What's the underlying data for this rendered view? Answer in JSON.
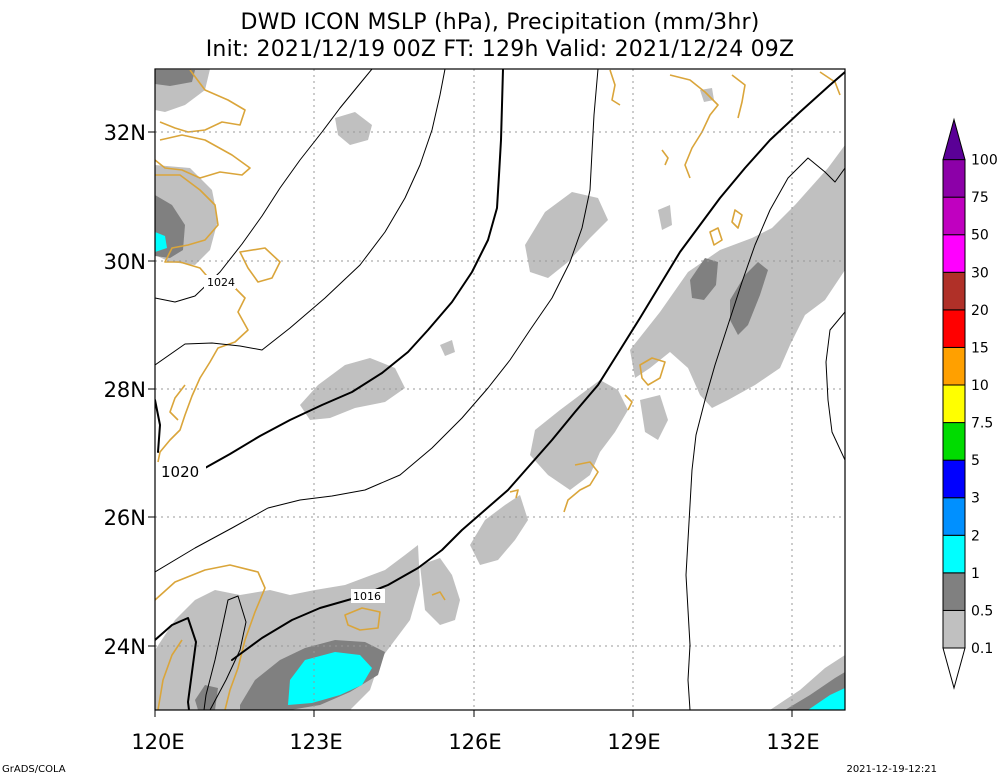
{
  "title": {
    "line1": "DWD ICON MSLP (hPa), Precipitation (mm/3hr)",
    "line2": "Init: 2021/12/19 00Z  FT: 129h  Valid: 2021/12/24 09Z"
  },
  "axes": {
    "lon_labels": [
      "120E",
      "123E",
      "126E",
      "129E",
      "132E"
    ],
    "lat_labels": [
      "32N",
      "30N",
      "28N",
      "26N",
      "24N"
    ]
  },
  "isobars": {
    "label_1024": "1024",
    "label_1020": "1020",
    "label_1016": "1016"
  },
  "colorbar": {
    "levels": [
      "0.1",
      "0.5",
      "1",
      "2",
      "3",
      "5",
      "7.5",
      "10",
      "15",
      "20",
      "30",
      "50",
      "75",
      "100"
    ],
    "colors": [
      "#c0c0c0",
      "#808080",
      "#00ffff",
      "#0090ff",
      "#0000ff",
      "#00dc00",
      "#ffff00",
      "#ffa000",
      "#ff0000",
      "#b03028",
      "#ff00ff",
      "#c000c0",
      "#8c00a8",
      "#5a0096"
    ]
  },
  "colors": {
    "coastline": "#daa53a",
    "precip_light": "#c0c0c0",
    "precip_medium": "#808080",
    "precip_heavy": "#00ffff",
    "grid": "#999999"
  },
  "footer": {
    "left": "GrADS/COLA",
    "right": "2021-12-19-12:21"
  }
}
